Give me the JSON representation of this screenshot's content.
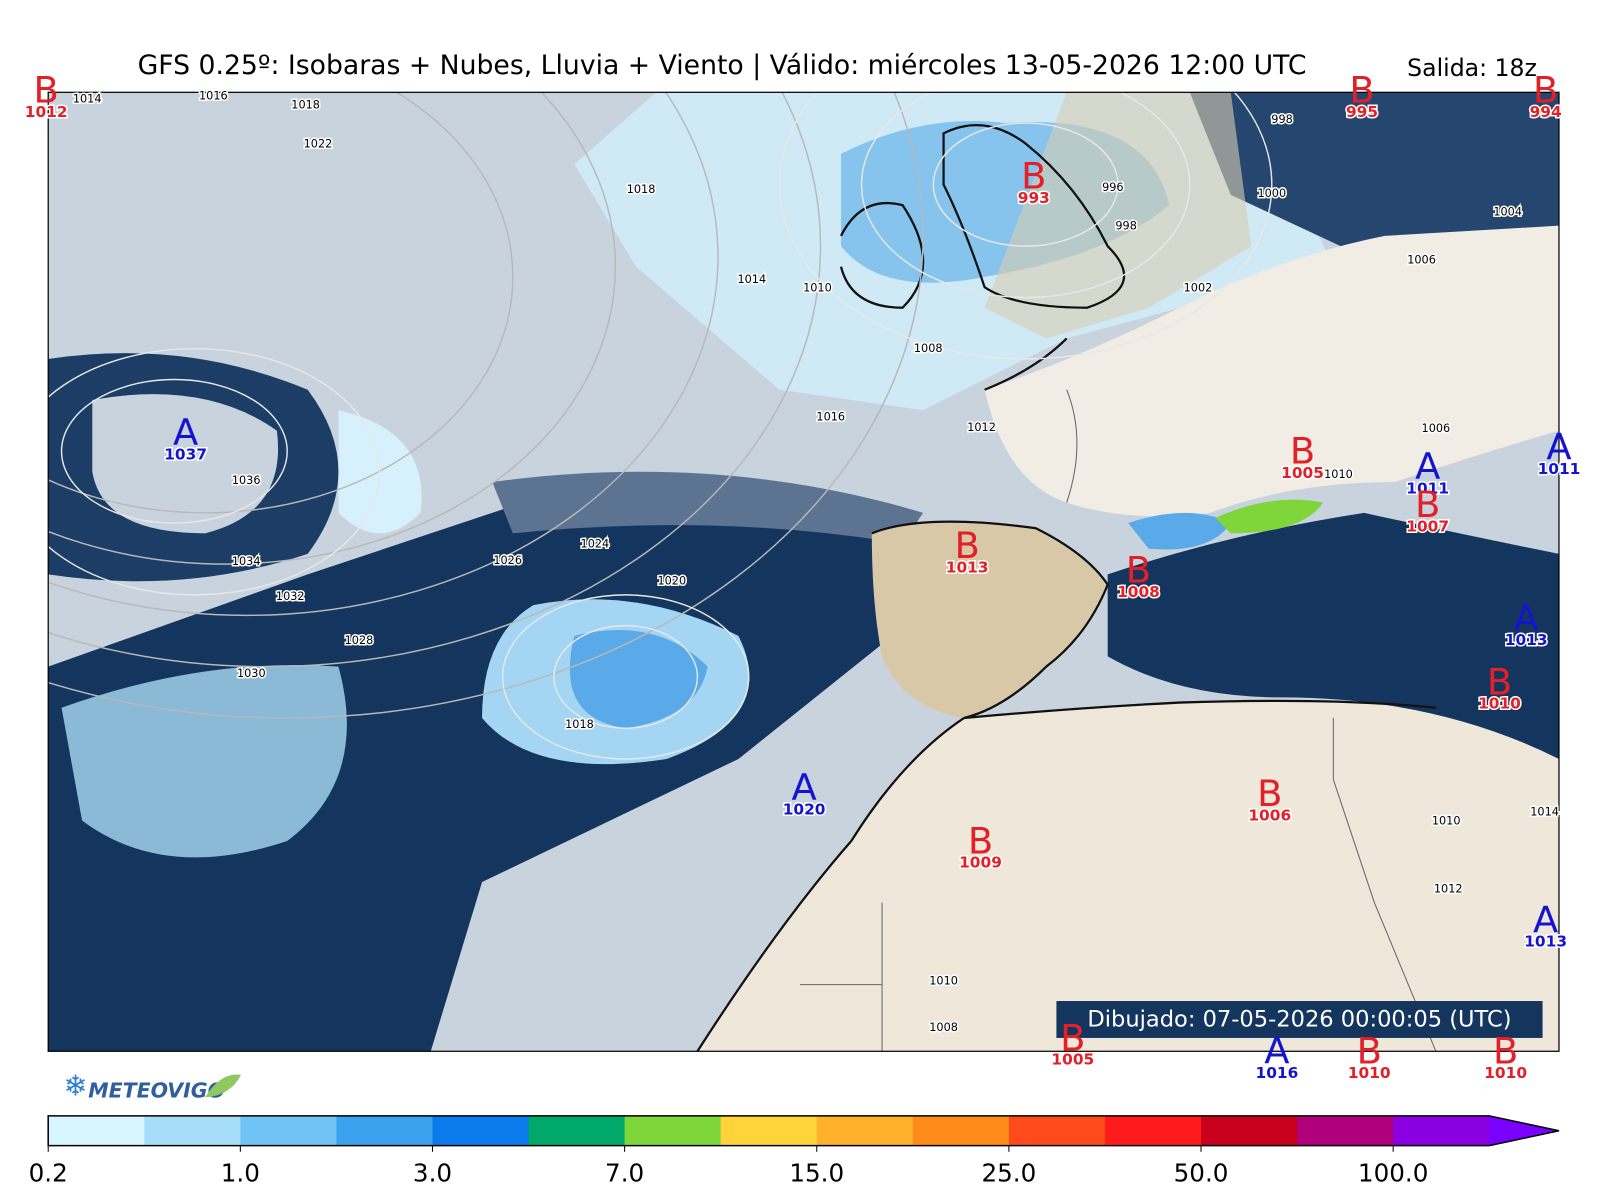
{
  "header": {
    "title": "GFS 0.25º: Isobaras + Nubes, Lluvia + Viento | Válido: miércoles 13-05-2026 12:00 UTC",
    "run": "Salida: 18z"
  },
  "pressure_centers": [
    {
      "type": "B",
      "value": 1012
    },
    {
      "type": "B",
      "value": 995
    },
    {
      "type": "B",
      "value": 994
    },
    {
      "type": "B",
      "value": 993
    },
    {
      "type": "A",
      "value": 1037
    },
    {
      "type": "B",
      "value": 1013
    },
    {
      "type": "B",
      "value": 1008
    },
    {
      "type": "B",
      "value": 1005
    },
    {
      "type": "A",
      "value": 1011
    },
    {
      "type": "B",
      "value": 1007
    },
    {
      "type": "A",
      "value": 1011
    },
    {
      "type": "A",
      "value": 1013
    },
    {
      "type": "B",
      "value": 1010
    },
    {
      "type": "A",
      "value": 1020
    },
    {
      "type": "B",
      "value": 1006
    },
    {
      "type": "B",
      "value": 1009
    },
    {
      "type": "A",
      "value": 1013
    },
    {
      "type": "B",
      "value": 1005
    },
    {
      "type": "A",
      "value": 1016
    },
    {
      "type": "B",
      "value": 1010
    },
    {
      "type": "B",
      "value": 1010
    }
  ],
  "isobar_labels": [
    1014,
    1016,
    1018,
    1022,
    1018,
    1014,
    1010,
    1008,
    1012,
    1016,
    1036,
    1034,
    1032,
    1030,
    1028,
    1026,
    1024,
    1020,
    1018,
    996,
    998,
    1000,
    1002,
    998,
    1004,
    1006,
    1006,
    1010,
    1010,
    1012,
    1014,
    1008,
    1010
  ],
  "drawn": "Dibujado: 07-05-2026 00:00:05 (UTC)",
  "logo": "METEOVIGO",
  "colorbar": {
    "colors": [
      "#d6f5ff",
      "#a6def9",
      "#70c3f5",
      "#3ba2ee",
      "#0b7bec",
      "#00a86b",
      "#7fd63b",
      "#ffd43b",
      "#ffb12b",
      "#ff8b1b",
      "#ff4b1b",
      "#ff1b1b",
      "#c9001b",
      "#b0007b",
      "#8a00e0"
    ],
    "extend_color": "#7a00ff",
    "tick_labels": [
      "0.2",
      "1.0",
      "3.0",
      "7.0",
      "15.0",
      "25.0",
      "50.0",
      "100.0"
    ]
  }
}
